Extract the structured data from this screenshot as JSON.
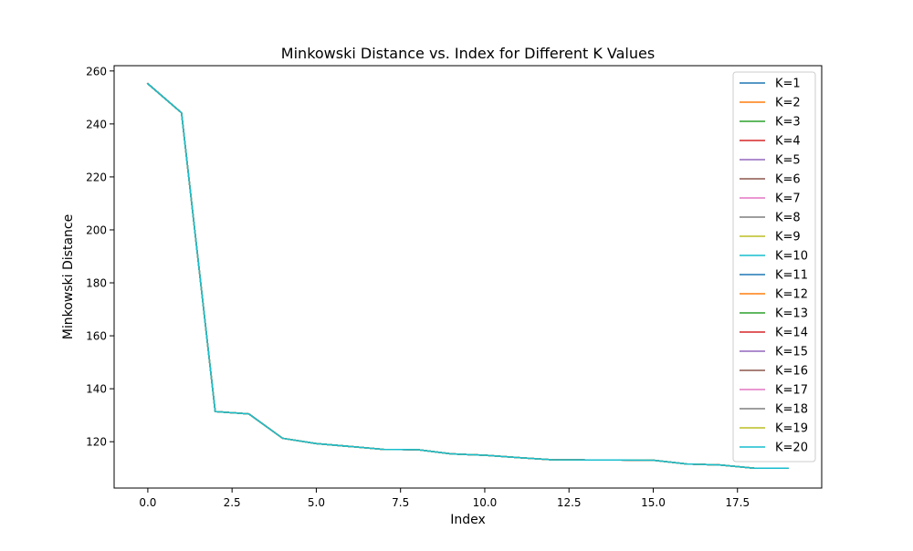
{
  "chart_data": {
    "type": "line",
    "title": "Minkowski Distance vs. Index for Different K Values",
    "xlabel": "Index",
    "ylabel": "Minkowski Distance",
    "xlim": [
      -1.0,
      20.0
    ],
    "ylim": [
      102.5,
      262.0
    ],
    "xticks": [
      0.0,
      2.5,
      5.0,
      7.5,
      10.0,
      12.5,
      15.0,
      17.5
    ],
    "xtick_labels": [
      "0.0",
      "2.5",
      "5.0",
      "7.5",
      "10.0",
      "12.5",
      "15.0",
      "17.5"
    ],
    "yticks": [
      120,
      140,
      160,
      180,
      200,
      220,
      240,
      260
    ],
    "ytick_labels": [
      "120",
      "140",
      "160",
      "180",
      "200",
      "220",
      "240",
      "260"
    ],
    "grid": false,
    "legend_position": "top-right",
    "x": [
      0,
      1,
      2,
      3,
      4,
      5,
      6,
      7,
      8,
      9,
      10,
      11,
      12,
      13,
      14,
      15,
      16,
      17,
      18,
      19
    ],
    "series": [
      {
        "name": "K=1",
        "color": "#1f77b4",
        "values": [
          255.2,
          244.2,
          131.4,
          130.5,
          121.3,
          119.3,
          118.2,
          117.1,
          117.0,
          115.4,
          114.9,
          114.0,
          113.2,
          113.1,
          113.1,
          113.0,
          111.6,
          111.2,
          110.0,
          110.0
        ]
      },
      {
        "name": "K=2",
        "color": "#ff7f0e",
        "values": [
          255.2,
          244.2,
          131.4,
          130.5,
          121.3,
          119.3,
          118.2,
          117.1,
          117.0,
          115.4,
          114.9,
          114.0,
          113.2,
          113.1,
          113.1,
          113.0,
          111.6,
          111.2,
          110.0,
          110.0
        ]
      },
      {
        "name": "K=3",
        "color": "#2ca02c",
        "values": [
          255.2,
          244.2,
          131.4,
          130.5,
          121.3,
          119.3,
          118.2,
          117.1,
          117.0,
          115.4,
          114.9,
          114.0,
          113.2,
          113.1,
          113.1,
          113.0,
          111.6,
          111.2,
          110.0,
          110.0
        ]
      },
      {
        "name": "K=4",
        "color": "#d62728",
        "values": [
          255.2,
          244.2,
          131.4,
          130.5,
          121.3,
          119.3,
          118.2,
          117.1,
          117.0,
          115.4,
          114.9,
          114.0,
          113.2,
          113.1,
          113.1,
          113.0,
          111.6,
          111.2,
          110.0,
          110.0
        ]
      },
      {
        "name": "K=5",
        "color": "#9467bd",
        "values": [
          255.2,
          244.2,
          131.4,
          130.5,
          121.3,
          119.3,
          118.2,
          117.1,
          117.0,
          115.4,
          114.9,
          114.0,
          113.2,
          113.1,
          113.1,
          113.0,
          111.6,
          111.2,
          110.0,
          110.0
        ]
      },
      {
        "name": "K=6",
        "color": "#8c564b",
        "values": [
          255.2,
          244.2,
          131.4,
          130.5,
          121.3,
          119.3,
          118.2,
          117.1,
          117.0,
          115.4,
          114.9,
          114.0,
          113.2,
          113.1,
          113.1,
          113.0,
          111.6,
          111.2,
          110.0,
          110.0
        ]
      },
      {
        "name": "K=7",
        "color": "#e377c2",
        "values": [
          255.2,
          244.2,
          131.4,
          130.5,
          121.3,
          119.3,
          118.2,
          117.1,
          117.0,
          115.4,
          114.9,
          114.0,
          113.2,
          113.1,
          113.1,
          113.0,
          111.6,
          111.2,
          110.0,
          110.0
        ]
      },
      {
        "name": "K=8",
        "color": "#7f7f7f",
        "values": [
          255.2,
          244.2,
          131.4,
          130.5,
          121.3,
          119.3,
          118.2,
          117.1,
          117.0,
          115.4,
          114.9,
          114.0,
          113.2,
          113.1,
          113.1,
          113.0,
          111.6,
          111.2,
          110.0,
          110.0
        ]
      },
      {
        "name": "K=9",
        "color": "#bcbd22",
        "values": [
          255.2,
          244.2,
          131.4,
          130.5,
          121.3,
          119.3,
          118.2,
          117.1,
          117.0,
          115.4,
          114.9,
          114.0,
          113.2,
          113.1,
          113.1,
          113.0,
          111.6,
          111.2,
          110.0,
          110.0
        ]
      },
      {
        "name": "K=10",
        "color": "#17becf",
        "values": [
          255.2,
          244.2,
          131.4,
          130.5,
          121.3,
          119.3,
          118.2,
          117.1,
          117.0,
          115.4,
          114.9,
          114.0,
          113.2,
          113.1,
          113.1,
          113.0,
          111.6,
          111.2,
          110.0,
          110.0
        ]
      },
      {
        "name": "K=11",
        "color": "#1f77b4",
        "values": [
          255.2,
          244.2,
          131.4,
          130.5,
          121.3,
          119.3,
          118.2,
          117.1,
          117.0,
          115.4,
          114.9,
          114.0,
          113.2,
          113.1,
          113.1,
          113.0,
          111.6,
          111.2,
          110.0,
          110.0
        ]
      },
      {
        "name": "K=12",
        "color": "#ff7f0e",
        "values": [
          255.2,
          244.2,
          131.4,
          130.5,
          121.3,
          119.3,
          118.2,
          117.1,
          117.0,
          115.4,
          114.9,
          114.0,
          113.2,
          113.1,
          113.1,
          113.0,
          111.6,
          111.2,
          110.0,
          110.0
        ]
      },
      {
        "name": "K=13",
        "color": "#2ca02c",
        "values": [
          255.2,
          244.2,
          131.4,
          130.5,
          121.3,
          119.3,
          118.2,
          117.1,
          117.0,
          115.4,
          114.9,
          114.0,
          113.2,
          113.1,
          113.1,
          113.0,
          111.6,
          111.2,
          110.0,
          110.0
        ]
      },
      {
        "name": "K=14",
        "color": "#d62728",
        "values": [
          255.2,
          244.2,
          131.4,
          130.5,
          121.3,
          119.3,
          118.2,
          117.1,
          117.0,
          115.4,
          114.9,
          114.0,
          113.2,
          113.1,
          113.1,
          113.0,
          111.6,
          111.2,
          110.0,
          110.0
        ]
      },
      {
        "name": "K=15",
        "color": "#9467bd",
        "values": [
          255.2,
          244.2,
          131.4,
          130.5,
          121.3,
          119.3,
          118.2,
          117.1,
          117.0,
          115.4,
          114.9,
          114.0,
          113.2,
          113.1,
          113.1,
          113.0,
          111.6,
          111.2,
          110.0,
          110.0
        ]
      },
      {
        "name": "K=16",
        "color": "#8c564b",
        "values": [
          255.2,
          244.2,
          131.4,
          130.5,
          121.3,
          119.3,
          118.2,
          117.1,
          117.0,
          115.4,
          114.9,
          114.0,
          113.2,
          113.1,
          113.1,
          113.0,
          111.6,
          111.2,
          110.0,
          110.0
        ]
      },
      {
        "name": "K=17",
        "color": "#e377c2",
        "values": [
          255.2,
          244.2,
          131.4,
          130.5,
          121.3,
          119.3,
          118.2,
          117.1,
          117.0,
          115.4,
          114.9,
          114.0,
          113.2,
          113.1,
          113.1,
          113.0,
          111.6,
          111.2,
          110.0,
          110.0
        ]
      },
      {
        "name": "K=18",
        "color": "#7f7f7f",
        "values": [
          255.2,
          244.2,
          131.4,
          130.5,
          121.3,
          119.3,
          118.2,
          117.1,
          117.0,
          115.4,
          114.9,
          114.0,
          113.2,
          113.1,
          113.1,
          113.0,
          111.6,
          111.2,
          110.0,
          110.0
        ]
      },
      {
        "name": "K=19",
        "color": "#bcbd22",
        "values": [
          255.2,
          244.2,
          131.4,
          130.5,
          121.3,
          119.3,
          118.2,
          117.1,
          117.0,
          115.4,
          114.9,
          114.0,
          113.2,
          113.1,
          113.1,
          113.0,
          111.6,
          111.2,
          110.0,
          110.0
        ]
      },
      {
        "name": "K=20",
        "color": "#17becf",
        "values": [
          255.2,
          244.2,
          131.4,
          130.5,
          121.3,
          119.3,
          118.2,
          117.1,
          117.0,
          115.4,
          114.9,
          114.0,
          113.2,
          113.1,
          113.1,
          113.0,
          111.6,
          111.2,
          110.0,
          110.0
        ]
      }
    ]
  }
}
